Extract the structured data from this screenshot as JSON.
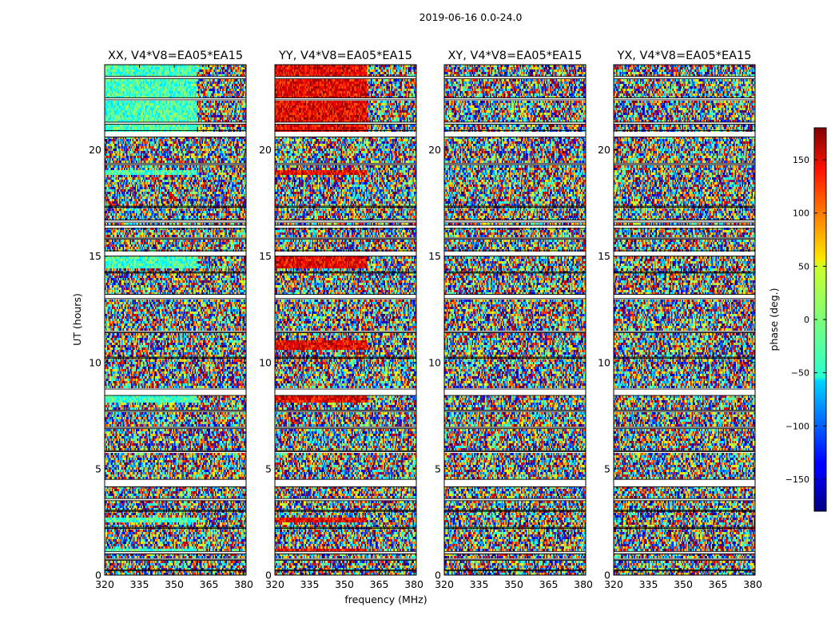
{
  "figure_title": "2019-06-16 0.0-24.0",
  "chart_data": {
    "type": "heatmap",
    "suptitle": "2019-06-16 0.0-24.0",
    "xlabel": "frequency (MHz)",
    "ylabel": "UT (hours)",
    "xlim": [
      320,
      381
    ],
    "ylim": [
      0,
      24
    ],
    "xticks": [
      320,
      335,
      350,
      365,
      380
    ],
    "xtick_labels": [
      "320",
      "335",
      "350",
      "365",
      "380"
    ],
    "yticks": [
      0,
      5,
      10,
      15,
      20
    ],
    "ytick_labels": [
      "0",
      "5",
      "10",
      "15",
      "20"
    ],
    "panels": [
      {
        "title": "XX, V4*V8=EA05*EA15",
        "description": "baseline phase waterfall",
        "coherent_phase_deg": -20,
        "coherent_hours": [
          [
            20.9,
            24
          ],
          [
            14.4,
            15.0
          ],
          [
            8.1,
            8.4
          ],
          [
            2.5,
            2.75
          ],
          [
            1.1,
            1.25
          ],
          [
            18.8,
            19.0
          ]
        ]
      },
      {
        "title": "YY, V4*V8=EA05*EA15",
        "description": "baseline phase waterfall",
        "coherent_phase_deg": 140,
        "coherent_hours": [
          [
            20.9,
            24
          ],
          [
            14.4,
            15.0
          ],
          [
            8.1,
            8.4
          ],
          [
            2.5,
            2.75
          ],
          [
            1.1,
            1.25
          ],
          [
            18.8,
            19.0
          ],
          [
            10.6,
            11.0
          ]
        ]
      },
      {
        "title": "XY, V4*V8=EA05*EA15",
        "description": "cross-hand phase, noise-like",
        "coherent_phase_deg": 0,
        "coherent_hours": []
      },
      {
        "title": "YX, V4*V8=EA05*EA15",
        "description": "cross-hand phase, noise-like",
        "coherent_phase_deg": 0,
        "coherent_hours": []
      }
    ],
    "flagged_hours": [
      [
        23.35,
        23.45
      ],
      [
        22.35,
        22.45
      ],
      [
        21.2,
        21.3
      ],
      [
        20.6,
        20.9
      ],
      [
        19.3,
        19.35
      ],
      [
        17.3,
        17.35
      ],
      [
        16.6,
        16.7
      ],
      [
        16.3,
        16.45
      ],
      [
        15.8,
        15.85
      ],
      [
        15.0,
        15.25
      ],
      [
        14.2,
        14.25
      ],
      [
        13.0,
        13.2
      ],
      [
        11.4,
        11.45
      ],
      [
        10.2,
        10.25
      ],
      [
        8.45,
        8.75
      ],
      [
        7.7,
        7.75
      ],
      [
        6.9,
        6.95
      ],
      [
        5.8,
        5.85
      ],
      [
        4.15,
        4.5
      ],
      [
        3.5,
        3.6
      ],
      [
        3.0,
        3.05
      ],
      [
        2.2,
        2.25
      ],
      [
        1.0,
        1.1
      ],
      [
        0.7,
        0.75
      ],
      [
        0.2,
        0.25
      ]
    ],
    "colorbar": {
      "label": "phase (deg.)",
      "range": [
        -180,
        180
      ],
      "ticks": [
        150,
        100,
        50,
        0,
        -50,
        -100,
        -150
      ],
      "tick_labels": [
        "150",
        "100",
        "50",
        "0",
        "−50",
        "−100",
        "−150"
      ],
      "colormap": "jet"
    }
  }
}
